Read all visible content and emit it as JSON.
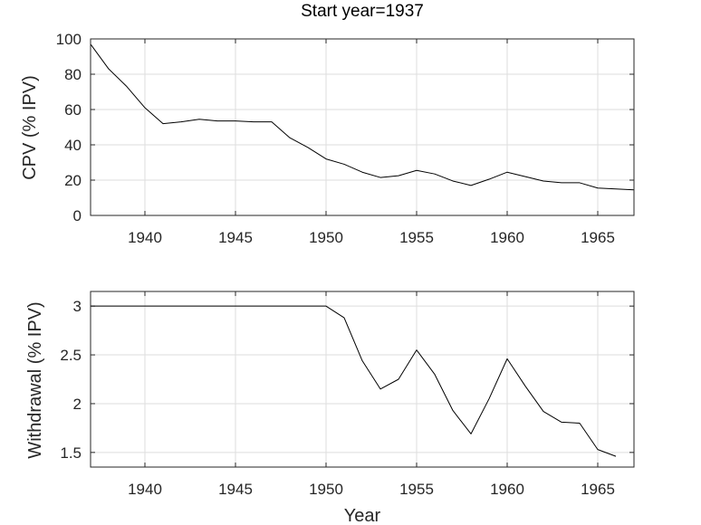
{
  "chart_data": [
    {
      "type": "line",
      "title": "Start year=1937",
      "xlabel": "",
      "ylabel": "CPV (% IPV)",
      "xlim": [
        1937,
        1967
      ],
      "ylim": [
        0,
        100
      ],
      "xticks": [
        1940,
        1945,
        1950,
        1955,
        1960,
        1965
      ],
      "yticks": [
        0,
        20,
        40,
        60,
        80,
        100
      ],
      "grid": true,
      "x": [
        1937,
        1938,
        1939,
        1940,
        1941,
        1942,
        1943,
        1944,
        1945,
        1946,
        1947,
        1948,
        1949,
        1950,
        1951,
        1952,
        1953,
        1954,
        1955,
        1956,
        1957,
        1958,
        1959,
        1960,
        1961,
        1962,
        1963,
        1964,
        1965,
        1966,
        1967
      ],
      "series": [
        {
          "values": [
            97,
            83,
            73,
            61,
            52,
            53,
            54.5,
            53.5,
            53.5,
            53,
            53,
            44,
            38.5,
            32,
            29,
            24.5,
            21.5,
            22.5,
            25.5,
            23.5,
            19.5,
            17,
            20.5,
            24.5,
            22,
            19.5,
            18.5,
            18.5,
            15.5,
            15,
            14.5
          ]
        }
      ]
    },
    {
      "type": "line",
      "title": "",
      "xlabel": "Year",
      "ylabel": "Withdrawal (% IPV)",
      "xlim": [
        1937,
        1967
      ],
      "ylim": [
        1.35,
        3.15
      ],
      "xticks": [
        1940,
        1945,
        1950,
        1955,
        1960,
        1965
      ],
      "yticks": [
        1.5,
        2,
        2.5,
        3
      ],
      "grid": true,
      "x": [
        1937,
        1938,
        1939,
        1940,
        1941,
        1942,
        1943,
        1944,
        1945,
        1946,
        1947,
        1948,
        1949,
        1950,
        1951,
        1952,
        1953,
        1954,
        1955,
        1956,
        1957,
        1958,
        1959,
        1960,
        1961,
        1962,
        1963,
        1964,
        1965,
        1966
      ],
      "series": [
        {
          "values": [
            3,
            3,
            3,
            3,
            3,
            3,
            3,
            3,
            3,
            3,
            3,
            3,
            3,
            3,
            2.88,
            2.44,
            2.15,
            2.25,
            2.55,
            2.3,
            1.93,
            1.69,
            2.05,
            2.46,
            2.18,
            1.92,
            1.81,
            1.8,
            1.53,
            1.46
          ]
        }
      ]
    }
  ]
}
